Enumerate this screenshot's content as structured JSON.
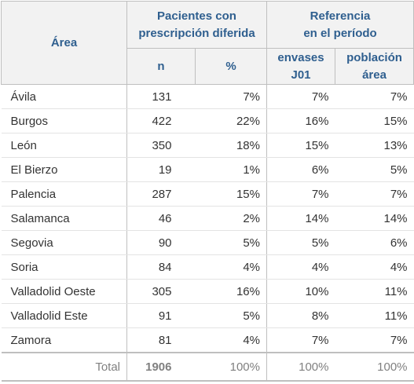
{
  "header": {
    "area": "Área",
    "groups": [
      {
        "lines": [
          "Pacientes con",
          "prescripción diferida"
        ]
      },
      {
        "lines": [
          "Referencia",
          "en el período"
        ]
      }
    ],
    "subheaders": [
      {
        "lines": [
          "n"
        ]
      },
      {
        "lines": [
          "%"
        ]
      },
      {
        "lines": [
          "envases",
          "J01"
        ]
      },
      {
        "lines": [
          "población",
          "área"
        ]
      }
    ]
  },
  "table": {
    "rows": [
      [
        "Ávila",
        "131",
        "7%",
        "7%",
        "7%"
      ],
      [
        "Burgos",
        "422",
        "22%",
        "16%",
        "15%"
      ],
      [
        "León",
        "350",
        "18%",
        "15%",
        "13%"
      ],
      [
        "El Bierzo",
        "19",
        "1%",
        "6%",
        "5%"
      ],
      [
        "Palencia",
        "287",
        "15%",
        "7%",
        "7%"
      ],
      [
        "Salamanca",
        "46",
        "2%",
        "14%",
        "14%"
      ],
      [
        "Segovia",
        "90",
        "5%",
        "5%",
        "6%"
      ],
      [
        "Soria",
        "84",
        "4%",
        "4%",
        "4%"
      ],
      [
        "Valladolid Oeste",
        "305",
        "16%",
        "10%",
        "11%"
      ],
      [
        "Valladolid Este",
        "91",
        "5%",
        "8%",
        "11%"
      ],
      [
        "Zamora",
        "81",
        "4%",
        "7%",
        "7%"
      ]
    ],
    "total": [
      "Total",
      "1906",
      "100%",
      "100%",
      "100%"
    ]
  }
}
